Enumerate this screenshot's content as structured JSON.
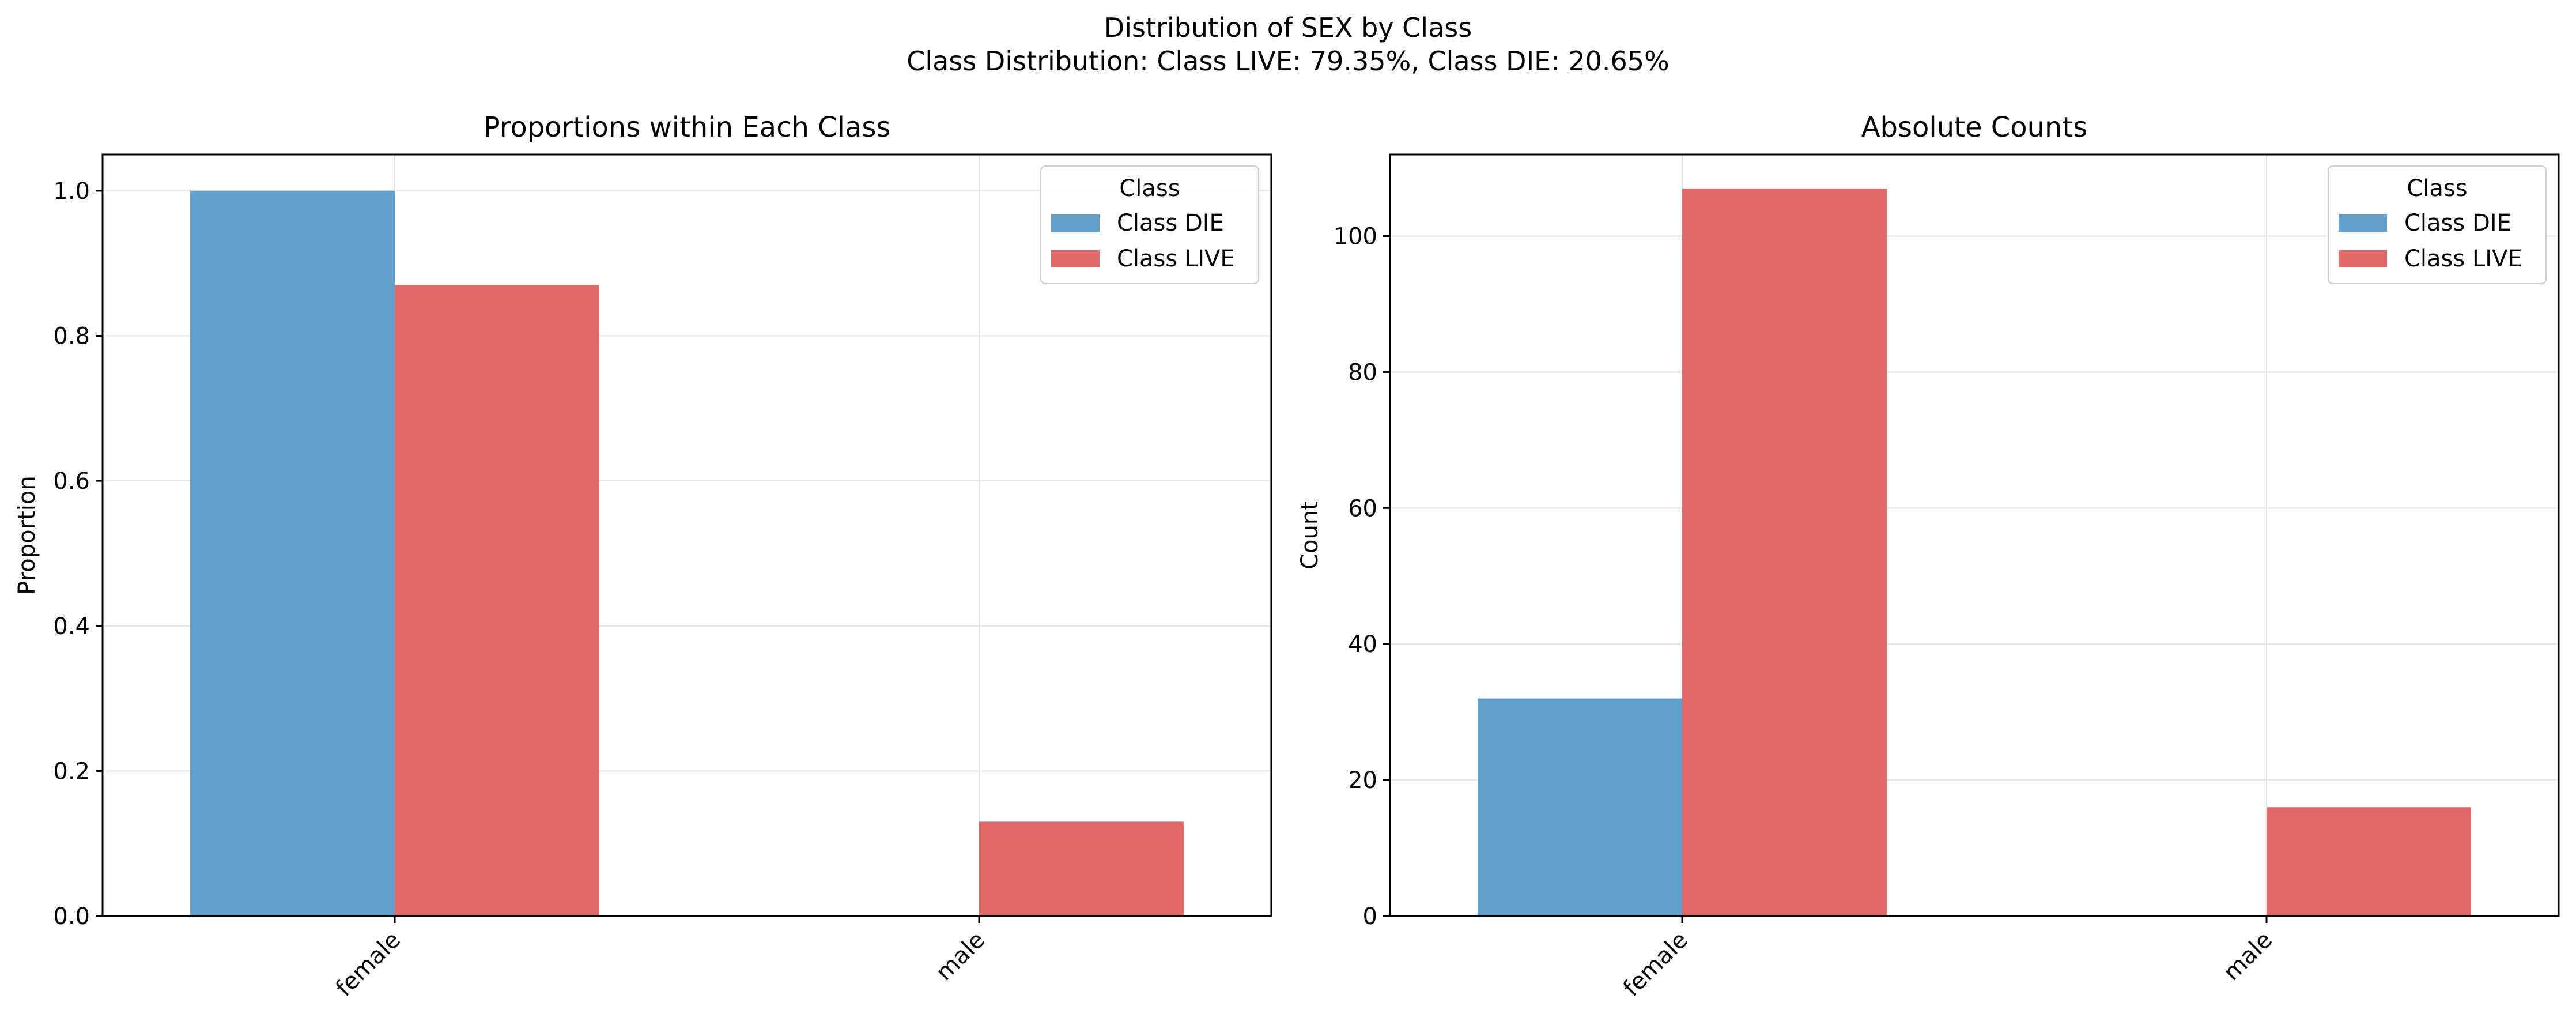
{
  "figure": {
    "title_line1": "Distribution of SEX by Class",
    "title_line2": "Class Distribution: Class LIVE: 79.35%, Class DIE: 20.65%"
  },
  "colors": {
    "die": "#63a0cb",
    "live": "#e2696a",
    "grid": "#e6e6e6"
  },
  "chart_data": [
    {
      "type": "bar",
      "title": "Proportions within Each Class",
      "xlabel": "",
      "ylabel": "Proportion",
      "categories": [
        "female",
        "male"
      ],
      "ylim": [
        0,
        1.05
      ],
      "yticks": [
        0.0,
        0.2,
        0.4,
        0.6,
        0.8,
        1.0
      ],
      "ytick_labels": [
        "0.0",
        "0.2",
        "0.4",
        "0.6",
        "0.8",
        "1.0"
      ],
      "grid": true,
      "legend": {
        "title": "Class",
        "position": "top-right"
      },
      "series": [
        {
          "name": "Class DIE",
          "color": "#63a0cb",
          "values": [
            1.0,
            0.0
          ]
        },
        {
          "name": "Class LIVE",
          "color": "#e2696a",
          "values": [
            0.87,
            0.13
          ]
        }
      ]
    },
    {
      "type": "bar",
      "title": "Absolute Counts",
      "xlabel": "",
      "ylabel": "Count",
      "categories": [
        "female",
        "male"
      ],
      "ylim": [
        0,
        112
      ],
      "yticks": [
        0,
        20,
        40,
        60,
        80,
        100
      ],
      "ytick_labels": [
        "0",
        "20",
        "40",
        "60",
        "80",
        "100"
      ],
      "grid": true,
      "legend": {
        "title": "Class",
        "position": "top-right"
      },
      "series": [
        {
          "name": "Class DIE",
          "color": "#63a0cb",
          "values": [
            32,
            0
          ]
        },
        {
          "name": "Class LIVE",
          "color": "#e2696a",
          "values": [
            107,
            16
          ]
        }
      ]
    }
  ]
}
